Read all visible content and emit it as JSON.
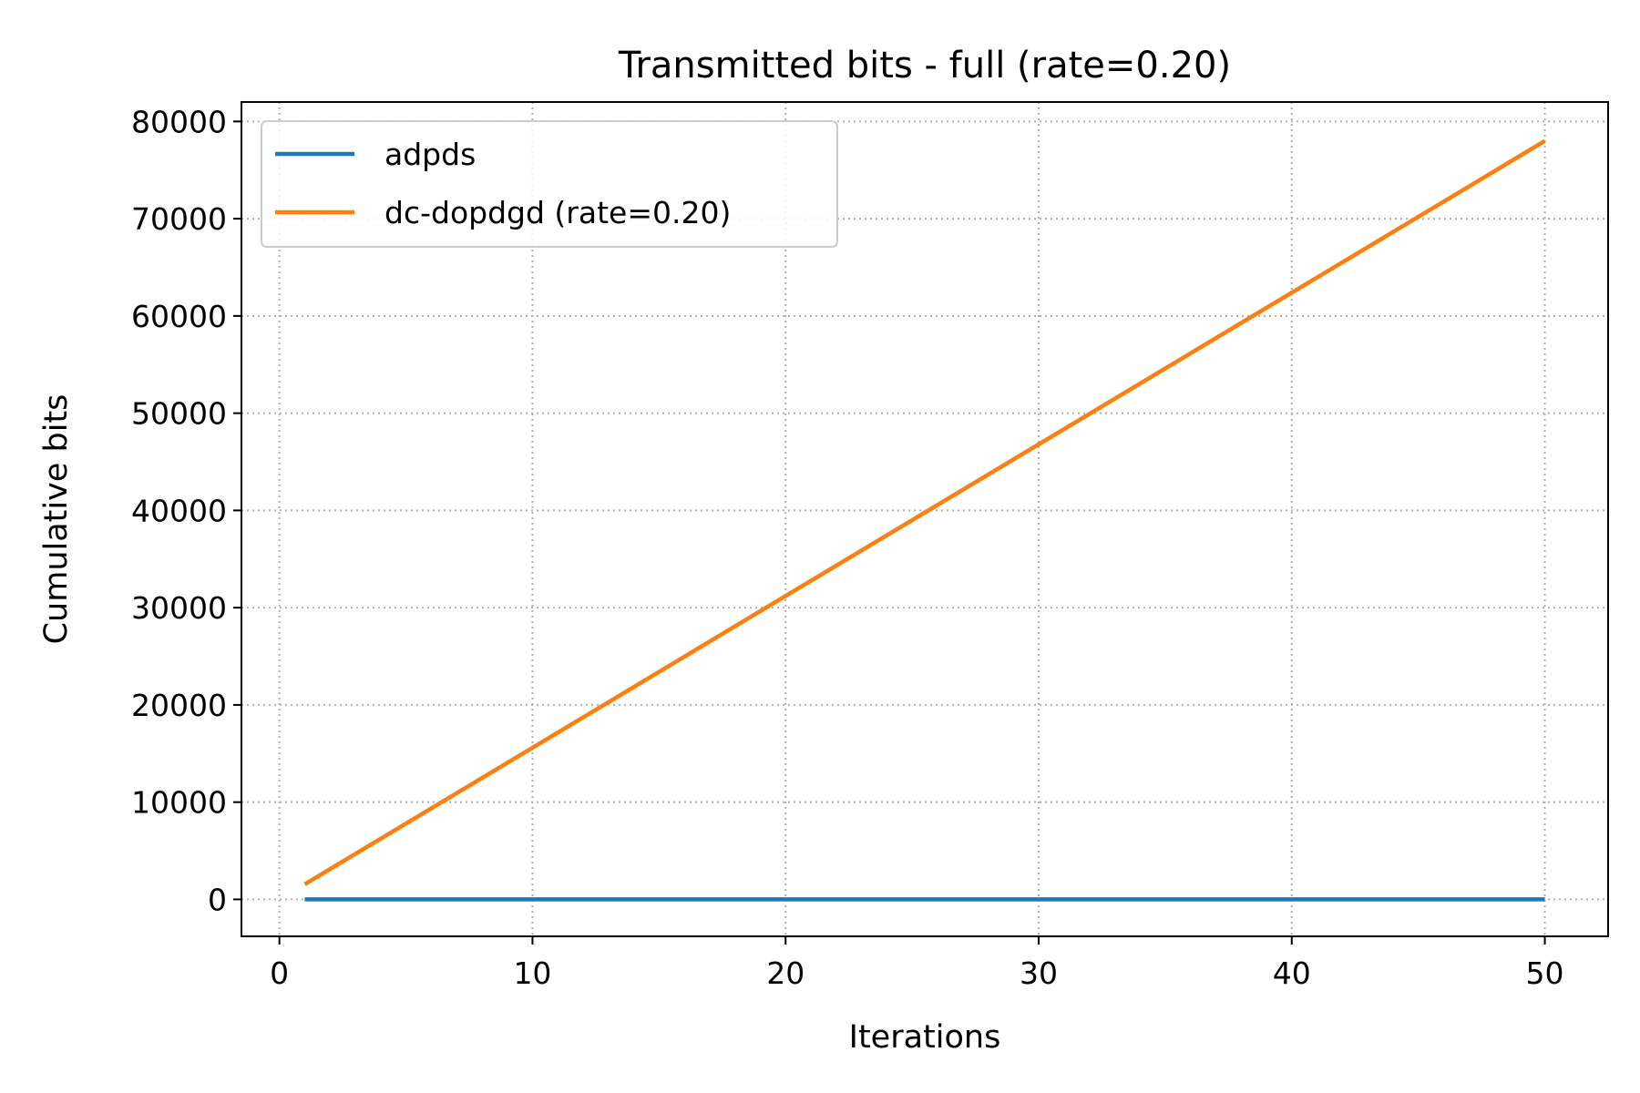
{
  "chart_data": {
    "type": "line",
    "title": "Transmitted bits - full (rate=0.20)",
    "xlabel": "Iterations",
    "ylabel": "Cumulative bits",
    "xlim": [
      -1.5,
      52.5
    ],
    "ylim": [
      -3800,
      82000
    ],
    "xticks": [
      0,
      10,
      20,
      30,
      40,
      50
    ],
    "yticks": [
      0,
      10000,
      20000,
      30000,
      40000,
      50000,
      60000,
      70000,
      80000
    ],
    "grid": true,
    "legend_position": "upper-left",
    "series": [
      {
        "name": "adpds",
        "color": "#1f77b4",
        "x": [
          1,
          50
        ],
        "y": [
          0,
          0
        ]
      },
      {
        "name": "dc-dopdgd (rate=0.20)",
        "color": "#ff7f0e",
        "x": [
          1,
          50
        ],
        "y": [
          1560,
          78000
        ]
      }
    ]
  }
}
